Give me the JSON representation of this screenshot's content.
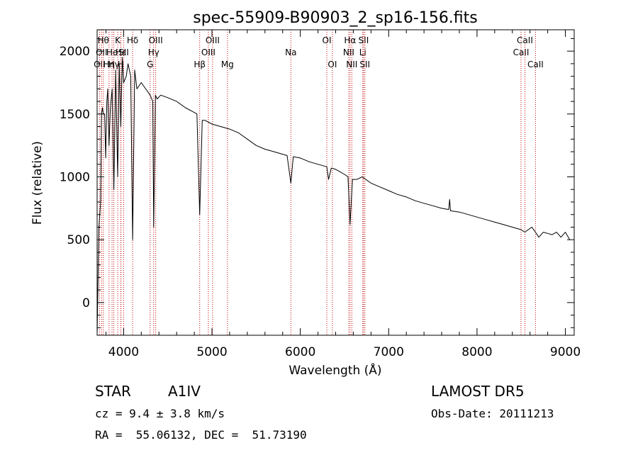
{
  "chart_data": {
    "type": "line",
    "title": "spec-55909-B90903_2_sp16-156.fits",
    "xlabel": "Wavelength (Å)",
    "ylabel": "Flux (relative)",
    "xlim": [
      3700,
      9100
    ],
    "ylim": [
      -260,
      2170
    ],
    "xticks": [
      4000,
      5000,
      6000,
      7000,
      8000,
      9000
    ],
    "yticks": [
      0,
      500,
      1000,
      1500,
      2000
    ],
    "grid": false,
    "legend": "none",
    "series": [
      {
        "x": [
          3700,
          3720,
          3740,
          3750,
          3760,
          3770,
          3785,
          3797,
          3810,
          3820,
          3835,
          3850,
          3870,
          3889,
          3910,
          3933,
          3950,
          3968,
          3985,
          4000,
          4030,
          4050,
          4080,
          4102,
          4125,
          4150,
          4200,
          4250,
          4300,
          4330,
          4340,
          4360,
          4380,
          4420,
          4500,
          4600,
          4700,
          4780,
          4830,
          4861,
          4890,
          4920,
          5000,
          5100,
          5200,
          5300,
          5400,
          5500,
          5600,
          5700,
          5800,
          5850,
          5893,
          5920,
          6000,
          6100,
          6200,
          6300,
          6320,
          6350,
          6400,
          6450,
          6500,
          6540,
          6563,
          6590,
          6640,
          6700,
          6800,
          6900,
          7000,
          7100,
          7200,
          7300,
          7400,
          7500,
          7600,
          7680,
          7690,
          7700,
          7800,
          7900,
          8000,
          8100,
          8200,
          8300,
          8400,
          8498,
          8542,
          8580,
          8620,
          8662,
          8700,
          8750,
          8800,
          8850,
          8900,
          8950,
          9000,
          9050
        ],
        "y": [
          -250,
          600,
          800,
          1500,
          1550,
          1500,
          1500,
          1150,
          1600,
          1700,
          1250,
          1550,
          1700,
          900,
          1850,
          1000,
          1900,
          1400,
          1950,
          1750,
          1800,
          1900,
          1800,
          500,
          1850,
          1700,
          1750,
          1700,
          1650,
          1600,
          600,
          1650,
          1620,
          1650,
          1630,
          1600,
          1550,
          1520,
          1500,
          700,
          1450,
          1450,
          1420,
          1400,
          1380,
          1350,
          1300,
          1250,
          1220,
          1200,
          1180,
          1170,
          950,
          1160,
          1150,
          1120,
          1100,
          1080,
          980,
          1070,
          1060,
          1040,
          1020,
          1000,
          620,
          980,
          980,
          1000,
          950,
          920,
          890,
          860,
          840,
          810,
          790,
          770,
          750,
          740,
          820,
          730,
          720,
          700,
          680,
          660,
          640,
          620,
          600,
          580,
          560,
          580,
          600,
          560,
          520,
          560,
          550,
          540,
          560,
          520,
          560,
          500
        ],
        "color": "#000000"
      }
    ],
    "annotations": {
      "color": "#c00000",
      "lines": [
        {
          "x": 3727,
          "label": "OII",
          "row": 2
        },
        {
          "x": 3750,
          "label": "OII",
          "row": 1
        },
        {
          "x": 3770,
          "label": "Hθ",
          "row": 0
        },
        {
          "x": 3835,
          "label": "Hη",
          "row": 2
        },
        {
          "x": 3869,
          "label": "He",
          "row": 1
        },
        {
          "x": 3889,
          "label": "Hγ",
          "row": 2
        },
        {
          "x": 3933,
          "label": "K",
          "row": 0
        },
        {
          "x": 3968,
          "label": "H",
          "row": 2
        },
        {
          "x": 3970,
          "label": "Hε",
          "row": 1
        },
        {
          "x": 4000,
          "label": "SII",
          "row": 1
        },
        {
          "x": 4102,
          "label": "Hδ",
          "row": 0
        },
        {
          "x": 4300,
          "label": "G",
          "row": 2
        },
        {
          "x": 4340,
          "label": "Hγ",
          "row": 1
        },
        {
          "x": 4363,
          "label": "OIII",
          "row": 0
        },
        {
          "x": 4861,
          "label": "Hβ",
          "row": 2
        },
        {
          "x": 4959,
          "label": "OIII",
          "row": 1
        },
        {
          "x": 5007,
          "label": "OIII",
          "row": 0
        },
        {
          "x": 5175,
          "label": "Mg",
          "row": 2
        },
        {
          "x": 5893,
          "label": "Na",
          "row": 1
        },
        {
          "x": 6300,
          "label": "OI",
          "row": 0
        },
        {
          "x": 6363,
          "label": "OI",
          "row": 2
        },
        {
          "x": 6548,
          "label": "NII",
          "row": 1
        },
        {
          "x": 6563,
          "label": "Hα",
          "row": 0
        },
        {
          "x": 6583,
          "label": "NII",
          "row": 2
        },
        {
          "x": 6707,
          "label": "Li",
          "row": 1
        },
        {
          "x": 6716,
          "label": "SII",
          "row": 0
        },
        {
          "x": 6731,
          "label": "SII",
          "row": 2
        },
        {
          "x": 8498,
          "label": "CaII",
          "row": 1
        },
        {
          "x": 8542,
          "label": "CaII",
          "row": 0
        },
        {
          "x": 8662,
          "label": "CaII",
          "row": 2
        }
      ]
    }
  },
  "info": {
    "object_class": "STAR",
    "subclass": "A1IV",
    "survey": "LAMOST DR5",
    "cz": "cz = 9.4 ± 3.8 km/s",
    "obs_date": "Obs-Date: 20111213",
    "coords": "RA =  55.06132, DEC =  51.73190"
  }
}
